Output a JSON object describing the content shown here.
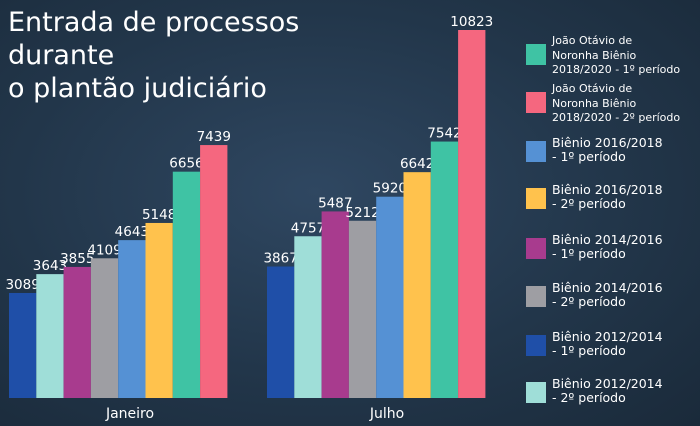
{
  "title": "Entrada de processos durante\no plantão judiciário",
  "chart_data": {
    "type": "bar",
    "categories": [
      "Janeiro",
      "Julho"
    ],
    "ylim": [
      0,
      11000
    ],
    "series": [
      {
        "name": "Biênio 2012/2014\n- 1º período",
        "color": "#1f4fa8",
        "values": [
          3089,
          3867
        ]
      },
      {
        "name": "Biênio 2012/2014\n- 2º período",
        "color": "#9fded8",
        "values": [
          3643,
          4757
        ]
      },
      {
        "name": "Biênio 2014/2016\n- 1º período",
        "color": "#a83b8e",
        "values": [
          3855,
          5487
        ]
      },
      {
        "name": "Biênio 2014/2016\n- 2º período",
        "color": "#9e9ea3",
        "values": [
          4109,
          5212
        ]
      },
      {
        "name": "Biênio 2016/2018\n- 1º período",
        "color": "#5591d4",
        "values": [
          4643,
          5920
        ]
      },
      {
        "name": "Biênio 2016/2018\n- 2º período",
        "color": "#ffc24d",
        "values": [
          5148,
          6642
        ]
      },
      {
        "name": "João Otávio de\nNoronha Biênio\n2018/2020 - 1º período",
        "color": "#3fc3a4",
        "values": [
          6656,
          7542
        ]
      },
      {
        "name": "João Otávio de\nNoronha Biênio\n2018/2020 - 2º período",
        "color": "#f5677f",
        "values": [
          7439,
          10823
        ]
      }
    ],
    "legend": {
      "position": "right",
      "order": [
        6,
        7,
        4,
        5,
        2,
        3,
        0,
        1
      ],
      "labels": [
        "João Otávio de\nNoronha Biênio\n2018/2020 - 1º período",
        "João Otávio de\nNoronha Biênio\n2018/2020 - 2º período",
        "Biênio 2016/2018\n- 1º período",
        "Biênio 2016/2018\n- 2º período",
        "Biênio 2014/2016\n- 1º período",
        "Biênio 2014/2016\n- 2º período",
        "Biênio 2012/2014\n- 1º período",
        "Biênio 2012/2014\n- 2º período"
      ]
    }
  }
}
